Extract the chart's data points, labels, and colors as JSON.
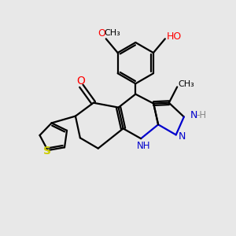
{
  "background_color": "#e8e8e8",
  "bond_color": "#000000",
  "atom_colors": {
    "O": "#ff0000",
    "N": "#0000cd",
    "S": "#cccc00",
    "H": "#888888",
    "C": "#000000"
  },
  "bond_width": 1.6,
  "figsize": [
    3.0,
    3.0
  ],
  "dpi": 100,
  "xlim": [
    0,
    10
  ],
  "ylim": [
    0,
    10
  ]
}
